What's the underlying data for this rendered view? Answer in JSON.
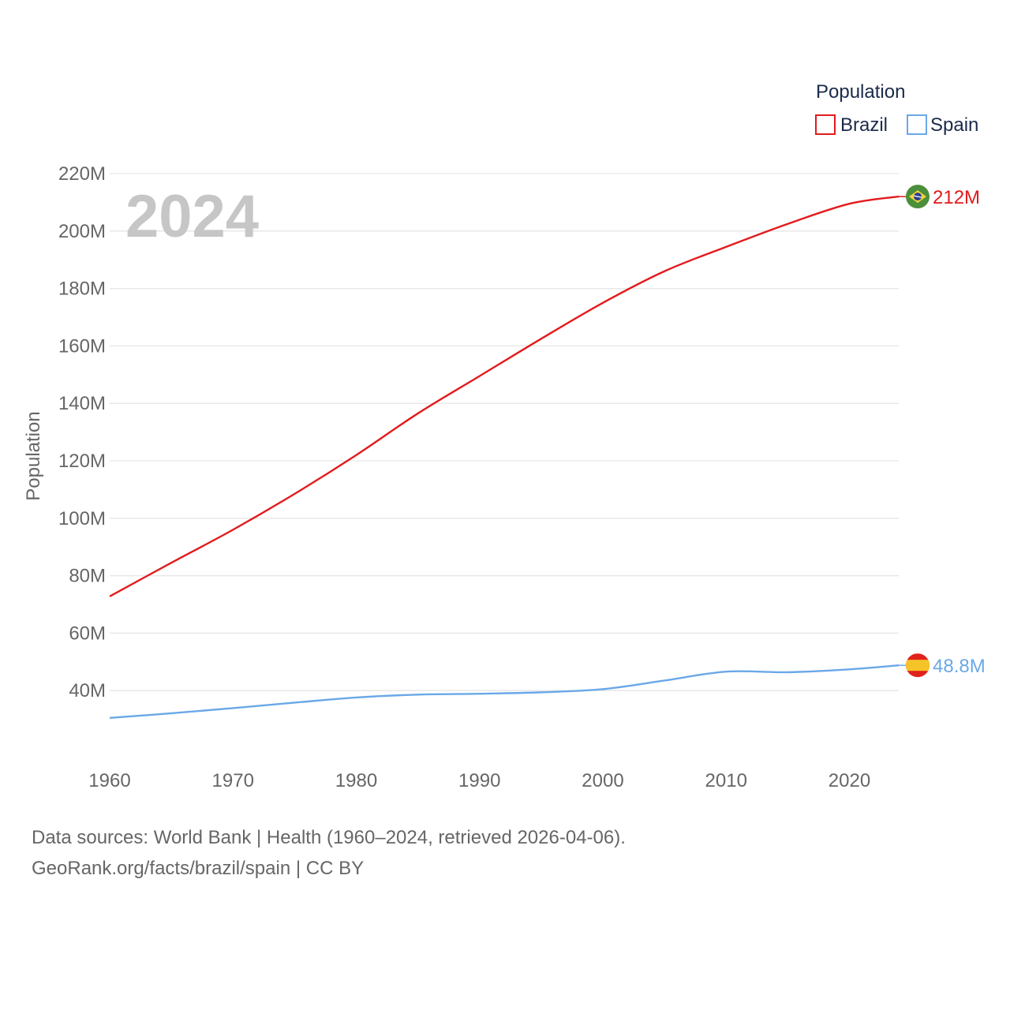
{
  "chart_data": {
    "type": "line",
    "title": "",
    "current_year": "2024",
    "xlabel": "",
    "ylabel": "Population",
    "xlim": [
      1960,
      2024
    ],
    "ylim": [
      20000000,
      220000000
    ],
    "x_ticks": [
      1960,
      1970,
      1980,
      1990,
      2000,
      2010,
      2020
    ],
    "x_tick_labels": [
      "1960",
      "1970",
      "1980",
      "1990",
      "2000",
      "2010",
      "2020"
    ],
    "y_ticks": [
      40000000,
      60000000,
      80000000,
      100000000,
      120000000,
      140000000,
      160000000,
      180000000,
      200000000,
      220000000
    ],
    "y_tick_labels": [
      "40M",
      "60M",
      "80M",
      "100M",
      "120M",
      "140M",
      "160M",
      "180M",
      "200M",
      "220M"
    ],
    "legend": {
      "title": "Population",
      "position": "top-right"
    },
    "series": [
      {
        "name": "Brazil",
        "color": "#e31a1c",
        "end_label": "212M",
        "flag_icon": "brazil-flag-icon",
        "x": [
          1960,
          1965,
          1970,
          1975,
          1980,
          1985,
          1990,
          1995,
          2000,
          2005,
          2010,
          2015,
          2020,
          2024
        ],
        "values": [
          72.8,
          84.5,
          96.0,
          108.5,
          122.0,
          136.5,
          149.5,
          162.5,
          175.0,
          186.0,
          194.5,
          202.5,
          209.5,
          212.0
        ]
      },
      {
        "name": "Spain",
        "color": "#6aa8e8",
        "end_label": "48.8M",
        "flag_icon": "spain-flag-icon",
        "x": [
          1960,
          1965,
          1970,
          1975,
          1980,
          1985,
          1990,
          1995,
          2000,
          2005,
          2010,
          2015,
          2020,
          2024
        ],
        "values": [
          30.5,
          32.1,
          33.9,
          35.8,
          37.6,
          38.6,
          38.9,
          39.4,
          40.5,
          43.5,
          46.6,
          46.4,
          47.4,
          48.8
        ]
      }
    ],
    "value_unit_multiplier": 1000000
  },
  "footer": {
    "source_line": "Data sources: World Bank | Health (1960–2024, retrieved 2026-04-06).",
    "credit_line": "GeoRank.org/facts/brazil/spain | CC BY"
  }
}
